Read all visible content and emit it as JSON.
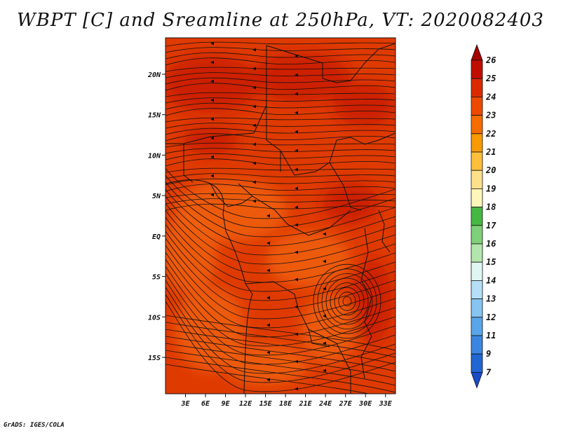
{
  "title": "WBPT [C] and Sreamline at 250hPa, VT: 2020082403",
  "footer": "GrADS: IGES/COLA",
  "map": {
    "field": "Wet-bulb potential temperature",
    "units": "C",
    "level": "250hPa",
    "lon_labels": [
      "3E",
      "6E",
      "9E",
      "12E",
      "15E",
      "18E",
      "21E",
      "24E",
      "27E",
      "30E",
      "33E"
    ],
    "lon_values": [
      3,
      6,
      9,
      12,
      15,
      18,
      21,
      24,
      27,
      30,
      33
    ],
    "lat_labels": [
      "20N",
      "15N",
      "10N",
      "5N",
      "EQ",
      "5S",
      "10S",
      "15S"
    ],
    "lat_values": [
      20,
      15,
      10,
      5,
      0,
      -5,
      -10,
      -15
    ],
    "lon_range": [
      0,
      34.5
    ],
    "lat_range": [
      -19.5,
      24.5
    ]
  },
  "colorbar": {
    "labels": [
      "26",
      "25",
      "24",
      "23",
      "22",
      "21",
      "20",
      "19",
      "18",
      "17",
      "16",
      "15",
      "14",
      "13",
      "12",
      "11",
      "9",
      "7"
    ],
    "colors": [
      "#a50000",
      "#c00d00",
      "#dc2a00",
      "#ec4a00",
      "#f56c00",
      "#f99a00",
      "#fcbf3c",
      "#fde08a",
      "#fdf6b9",
      "#45b843",
      "#7fd07a",
      "#b3e6ac",
      "#e0f6f2",
      "#b4dff6",
      "#86c4f2",
      "#5aa5ea",
      "#3b86e0",
      "#2266d4",
      "#1a4bc8"
    ]
  },
  "colors": {
    "field_dark": "#c81a00",
    "field_mid": "#df3a00",
    "field_light": "#f0620c",
    "line": "#111111"
  }
}
